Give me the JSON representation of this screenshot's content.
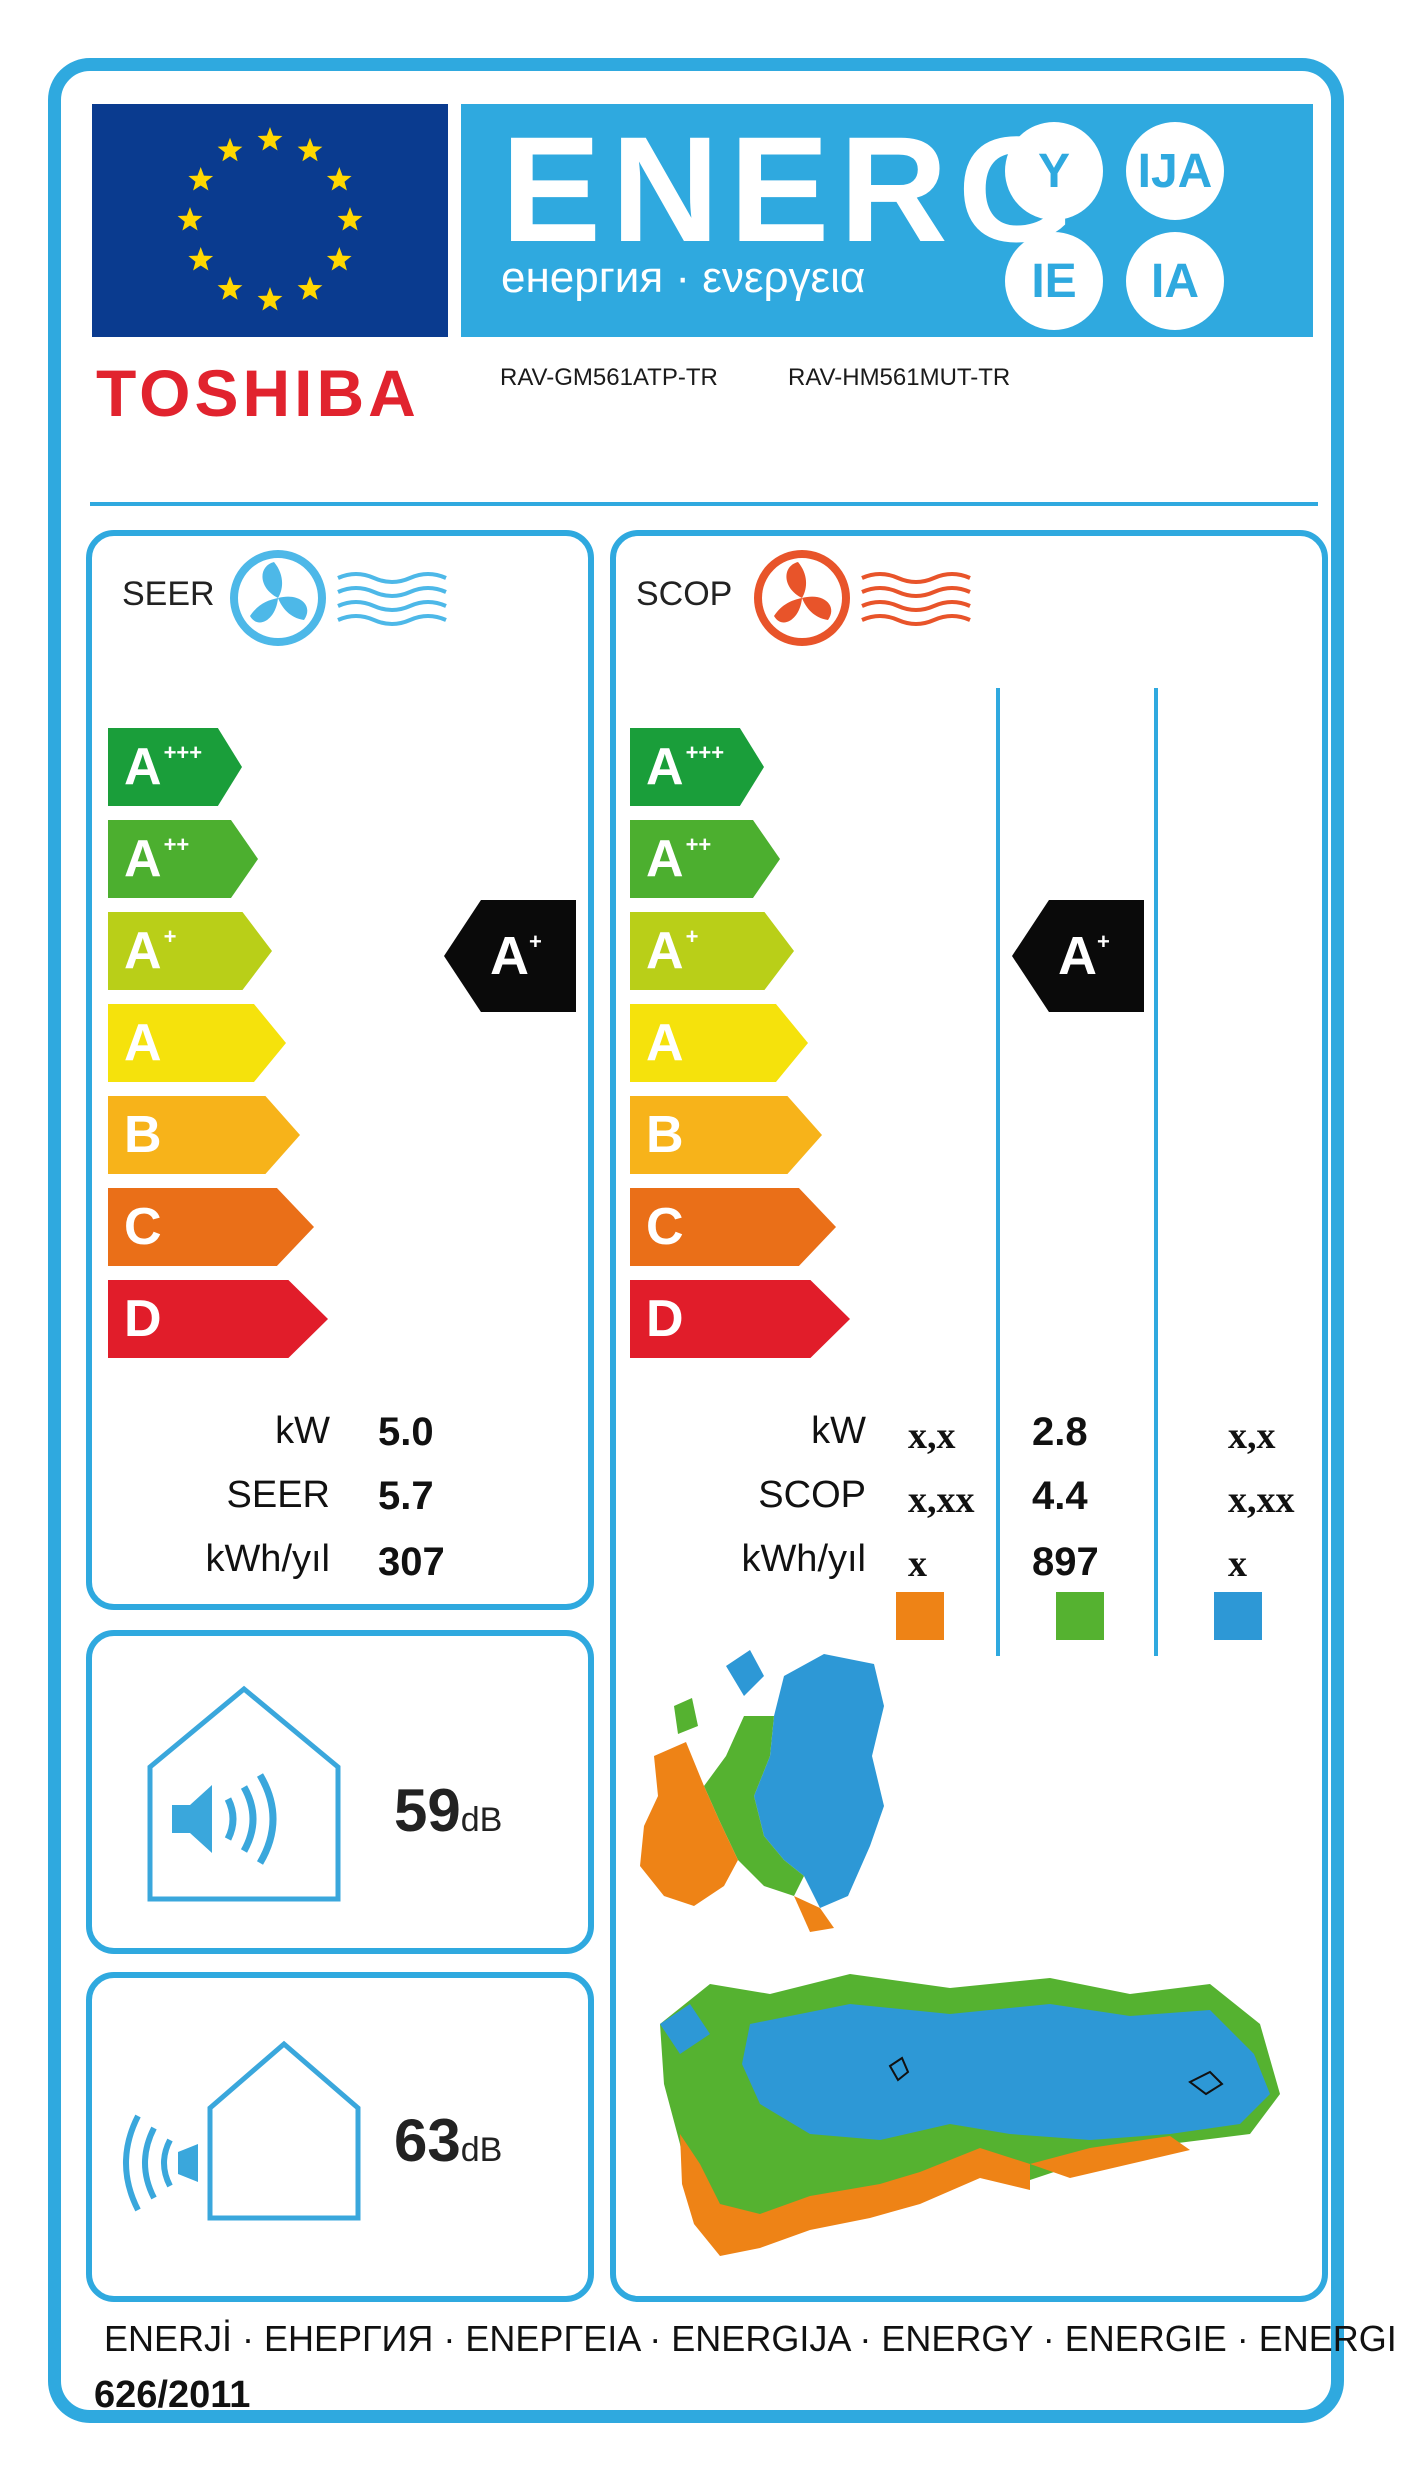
{
  "colors": {
    "frame": "#2fa9df",
    "eu_blue": "#0a3b8f",
    "star": "#ffd700",
    "brand_red": "#e1232e",
    "black_badge": "#0a0a0a",
    "classes": [
      "#1a9e3a",
      "#4caf2f",
      "#b9cf18",
      "#f5e20c",
      "#f7b31a",
      "#ea6f18",
      "#e11d2a"
    ],
    "zone_warm": "#ee8316",
    "zone_average": "#55b230",
    "zone_cold": "#2d98d6"
  },
  "header": {
    "energ": "ENERG",
    "subtitle": "енергия · ενεργεια",
    "circles": [
      "Y",
      "IJA",
      "IE",
      "IA"
    ]
  },
  "brand": "TOSHIBA",
  "models": {
    "indoor": "RAV-GM561ATP-TR",
    "outdoor": "RAV-HM561MUT-TR"
  },
  "scale": [
    {
      "letter": "A",
      "sup": "+++"
    },
    {
      "letter": "A",
      "sup": "++"
    },
    {
      "letter": "A",
      "sup": "+"
    },
    {
      "letter": "A",
      "sup": ""
    },
    {
      "letter": "B",
      "sup": ""
    },
    {
      "letter": "C",
      "sup": ""
    },
    {
      "letter": "D",
      "sup": ""
    }
  ],
  "seer": {
    "label": "SEER",
    "icon": "cooling-fan-icon",
    "rating": {
      "letter": "A",
      "sup": "+"
    },
    "rows": [
      {
        "label": "kW",
        "value": "5.0"
      },
      {
        "label": "SEER",
        "value": "5.7"
      },
      {
        "label": "kWh/yıl",
        "value": "307"
      }
    ]
  },
  "scop": {
    "label": "SCOP",
    "icon": "heating-fan-icon",
    "rating": {
      "letter": "A",
      "sup": "+"
    },
    "row_labels": [
      "kW",
      "SCOP",
      "kWh/yıl"
    ],
    "warm": [
      "x,x",
      "x,xx",
      "x"
    ],
    "average": [
      "2.8",
      "4.4",
      "897"
    ],
    "cold": [
      "x,x",
      "x,xx",
      "x"
    ]
  },
  "noise": {
    "indoor": {
      "value": "59",
      "unit": "dB",
      "icon": "indoor-speaker-icon"
    },
    "outdoor": {
      "value": "63",
      "unit": "dB",
      "icon": "outdoor-speaker-icon"
    }
  },
  "footer": {
    "languages": "ENERJİ  · ЕНЕРГИЯ · ΕΝΕΡΓΕΙΑ · ENERGIJA · ENERGY · ENERGIE · ENERGI",
    "regulation": "626/2011"
  }
}
